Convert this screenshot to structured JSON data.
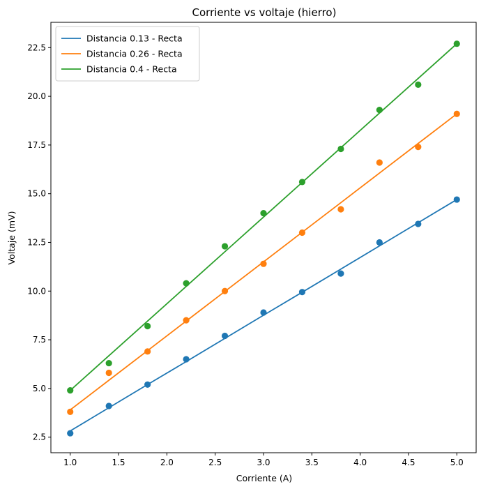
{
  "chart_data": {
    "type": "scatter",
    "title": "Corriente vs voltaje (hierro)",
    "xlabel": "Corriente (A)",
    "ylabel": "Voltaje (mV)",
    "xlim": [
      0.8,
      5.2
    ],
    "ylim": [
      1.7,
      23.8
    ],
    "x_ticks": [
      "1.0",
      "1.5",
      "2.0",
      "2.5",
      "3.0",
      "3.5",
      "4.0",
      "4.5",
      "5.0"
    ],
    "y_ticks": [
      "2.5",
      "5.0",
      "7.5",
      "10.0",
      "12.5",
      "15.0",
      "17.5",
      "20.0",
      "22.5"
    ],
    "grid": false,
    "legend_position": "top-left",
    "x": [
      1.0,
      1.4,
      1.8,
      2.2,
      2.6,
      3.0,
      3.4,
      3.8,
      4.2,
      4.6,
      5.0
    ],
    "series": [
      {
        "name": "Distancia 0.13 - Recta",
        "color": "#1f77b4",
        "points": [
          2.7,
          4.1,
          5.2,
          6.5,
          7.7,
          8.9,
          9.95,
          10.9,
          12.5,
          13.45,
          14.7
        ],
        "fit": [
          2.82,
          4.01,
          5.2,
          6.38,
          7.57,
          8.76,
          9.94,
          11.13,
          12.32,
          13.51,
          14.7
        ]
      },
      {
        "name": "Distancia 0.26 - Recta",
        "color": "#ff7f0e",
        "points": [
          3.8,
          5.8,
          6.9,
          8.5,
          10.0,
          11.4,
          13.0,
          14.2,
          16.6,
          17.4,
          19.1
        ],
        "fit": [
          3.9,
          5.42,
          6.94,
          8.46,
          9.98,
          11.5,
          13.02,
          14.54,
          16.06,
          17.58,
          19.1
        ]
      },
      {
        "name": "Distancia 0.4 - Recta",
        "color": "#2ca02c",
        "points": [
          4.9,
          6.3,
          8.2,
          10.4,
          12.3,
          14.0,
          15.6,
          17.3,
          19.3,
          20.6,
          22.7
        ],
        "fit": [
          4.9,
          6.68,
          8.46,
          10.24,
          12.02,
          13.8,
          15.58,
          17.36,
          19.14,
          20.92,
          22.7
        ]
      }
    ]
  }
}
